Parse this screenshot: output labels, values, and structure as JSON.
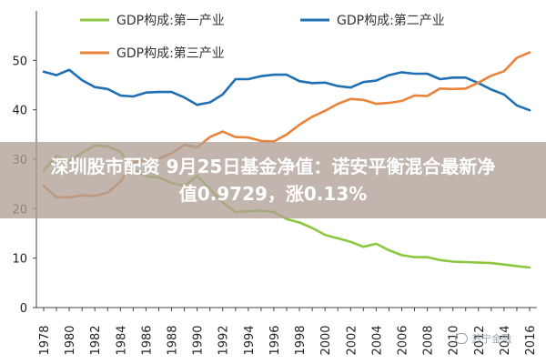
{
  "chart_data": {
    "type": "line",
    "title": "",
    "xlabel": "",
    "ylabel": "",
    "ylim": [
      0,
      60
    ],
    "yticks": [
      0,
      10,
      20,
      30,
      40,
      50
    ],
    "xticks": [
      1978,
      1980,
      1982,
      1984,
      1986,
      1988,
      1990,
      1992,
      1994,
      1996,
      1998,
      2000,
      2002,
      2004,
      2006,
      2008,
      2010,
      2012,
      2014,
      2016
    ],
    "x": [
      1978,
      1979,
      1980,
      1981,
      1982,
      1983,
      1984,
      1985,
      1986,
      1987,
      1988,
      1989,
      1990,
      1991,
      1992,
      1993,
      1994,
      1995,
      1996,
      1997,
      1998,
      1999,
      2000,
      2001,
      2002,
      2003,
      2004,
      2005,
      2006,
      2007,
      2008,
      2009,
      2010,
      2011,
      2012,
      2013,
      2014,
      2015,
      2016
    ],
    "grid": false,
    "legend": "top",
    "series": [
      {
        "name": "GDP构成:第一产业",
        "color": "#8dc63f",
        "values": [
          27.7,
          30.7,
          29.6,
          31.3,
          32.8,
          32.6,
          31.5,
          27.9,
          26.6,
          26.3,
          25.2,
          24.6,
          26.6,
          24.0,
          21.3,
          19.3,
          19.5,
          19.6,
          19.3,
          17.9,
          17.2,
          16.1,
          14.7,
          14.0,
          13.3,
          12.3,
          12.9,
          11.6,
          10.6,
          10.2,
          10.2,
          9.6,
          9.3,
          9.2,
          9.1,
          9.0,
          8.7,
          8.4,
          8.1
        ]
      },
      {
        "name": "GDP构成:第二产业",
        "color": "#1f6fb3",
        "values": [
          47.7,
          47.0,
          48.1,
          46.0,
          44.6,
          44.2,
          42.9,
          42.7,
          43.5,
          43.6,
          43.6,
          42.5,
          41.0,
          41.5,
          43.1,
          46.2,
          46.2,
          46.8,
          47.1,
          47.1,
          45.8,
          45.4,
          45.5,
          44.8,
          44.5,
          45.6,
          45.9,
          47.0,
          47.6,
          47.3,
          47.3,
          46.2,
          46.5,
          46.5,
          45.4,
          44.1,
          43.1,
          40.9,
          39.9
        ]
      },
      {
        "name": "GDP构成:第三产业",
        "color": "#e9833a",
        "values": [
          24.6,
          22.3,
          22.3,
          22.7,
          22.6,
          23.2,
          25.5,
          29.4,
          29.9,
          30.1,
          31.2,
          32.9,
          32.4,
          34.5,
          35.6,
          34.5,
          34.4,
          33.7,
          33.6,
          35.0,
          37.0,
          38.6,
          39.8,
          41.2,
          42.2,
          42.0,
          41.2,
          41.4,
          41.8,
          42.9,
          42.8,
          44.3,
          44.2,
          44.3,
          45.5,
          46.9,
          47.8,
          50.5,
          51.6
        ]
      }
    ]
  },
  "overlay": {
    "line1": "深圳股市配资 9月25日基金净值：诺安平衡混合最新净",
    "line2": "值0.9729，涨0.13%"
  },
  "watermark": {
    "text": "苏宁金融"
  }
}
